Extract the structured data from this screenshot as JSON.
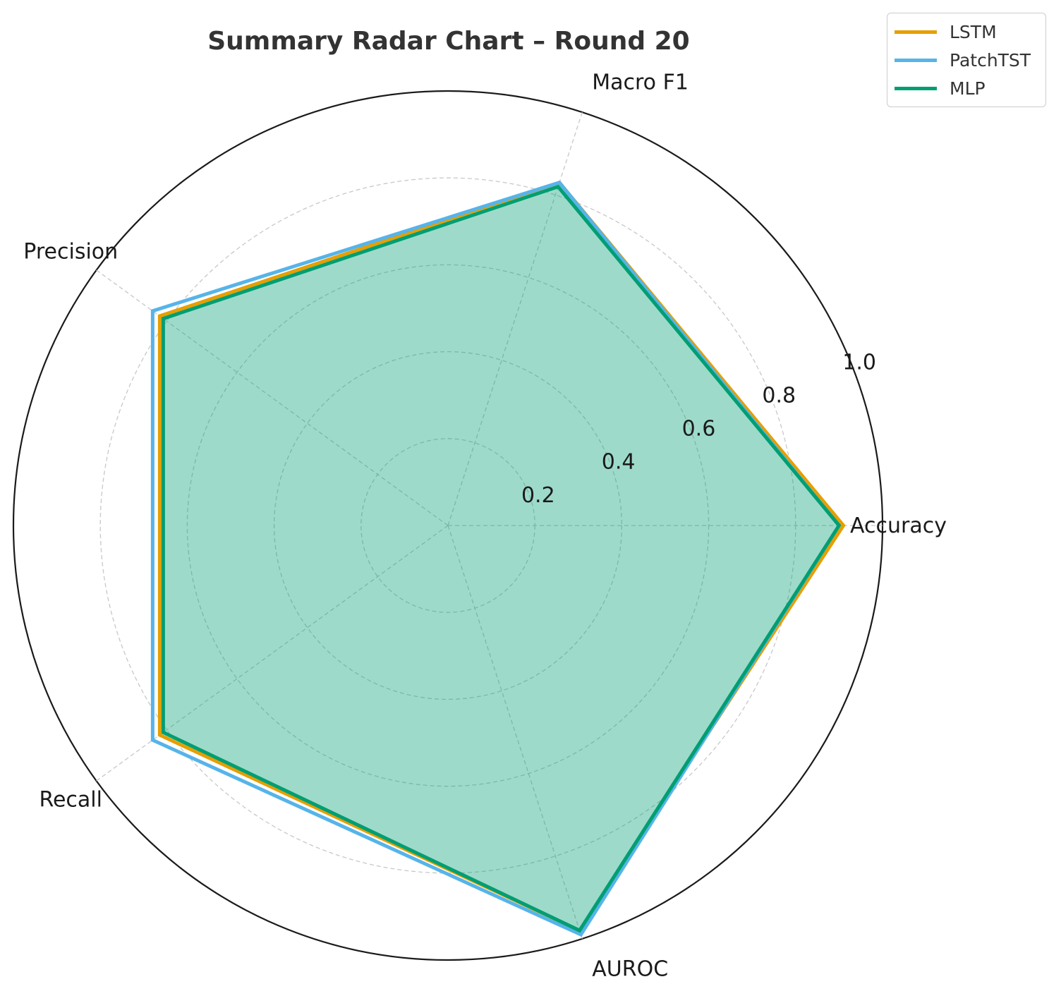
{
  "chart_data": {
    "type": "radar",
    "title": "Summary Radar Chart – Round 20",
    "axes": [
      "Accuracy",
      "Macro F1",
      "Precision",
      "Recall",
      "AUROC"
    ],
    "rlim": [
      0,
      1.0
    ],
    "r_ticks": [
      "0.2",
      "0.4",
      "0.6",
      "0.8",
      "1.0"
    ],
    "grid": true,
    "legend_position": "top-right",
    "series": [
      {
        "name": "LSTM",
        "color": "#E69F00",
        "values": [
          0.91,
          0.83,
          0.82,
          0.82,
          0.98
        ]
      },
      {
        "name": "PatchTST",
        "color": "#56B4E9",
        "values": [
          0.9,
          0.83,
          0.84,
          0.84,
          0.99
        ]
      },
      {
        "name": "MLP",
        "color": "#009E73",
        "values": [
          0.9,
          0.82,
          0.81,
          0.81,
          0.98
        ]
      }
    ],
    "fill_color": "#009E73"
  }
}
